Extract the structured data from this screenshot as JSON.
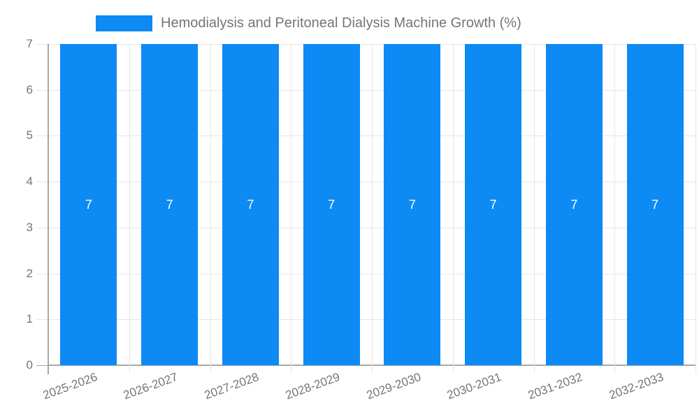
{
  "chart_data": {
    "type": "bar",
    "title": "Hemodialysis and Peritoneal Dialysis Machine Growth (%)",
    "legend": {
      "position": "top"
    },
    "categories": [
      "2025-2026",
      "2026-2027",
      "2027-2028",
      "2028-2029",
      "2029-2030",
      "2030-2031",
      "2031-2032",
      "2032-2033"
    ],
    "series": [
      {
        "name": "Hemodialysis and Peritoneal Dialysis Machine Growth (%)",
        "values": [
          7,
          7,
          7,
          7,
          7,
          7,
          7,
          7
        ]
      }
    ],
    "xlabel": "",
    "ylabel": "",
    "ylim": [
      0,
      7
    ],
    "yticks": [
      0,
      1,
      2,
      3,
      4,
      5,
      6,
      7
    ],
    "grid": true,
    "bar_width_ratio": 0.7,
    "colors": {
      "bar": "#0d8af4",
      "bar_label": "#ffffff",
      "text": "#757575",
      "gridline": "#e6e6e6",
      "axis": "#a8a8a8"
    }
  }
}
